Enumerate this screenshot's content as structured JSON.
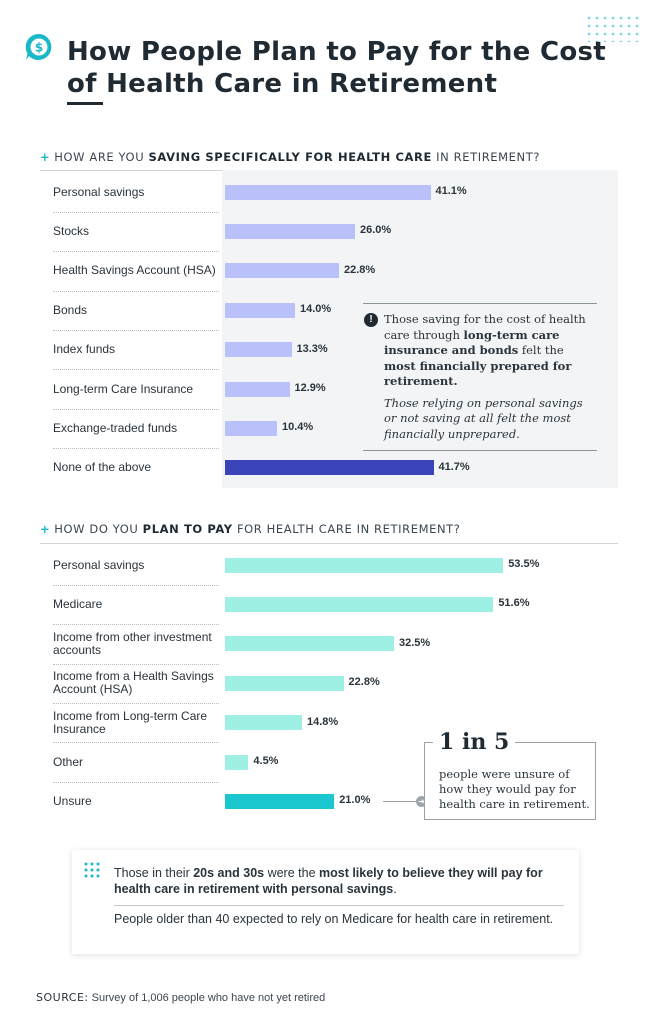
{
  "header": {
    "title": "How People Plan to Pay for the Cost of Health Care in Retirement",
    "icon": "dollar-chat-icon",
    "accent": "#19b8c9"
  },
  "chart_data": [
    {
      "type": "bar",
      "orientation": "horizontal",
      "title_parts": {
        "pre": "HOW ARE YOU ",
        "bold": "SAVING SPECIFICALLY FOR HEALTH CARE",
        "post": " IN RETIREMENT?"
      },
      "categories": [
        "Personal savings",
        "Stocks",
        "Health Savings Account (HSA)",
        "Bonds",
        "Index funds",
        "Long-term Care Insurance",
        "Exchange-traded funds",
        "None of the above"
      ],
      "values": [
        41.1,
        26.0,
        22.8,
        14.0,
        13.3,
        12.9,
        10.4,
        41.7
      ],
      "value_labels": [
        "41.1%",
        "26.0%",
        "22.8%",
        "14.0%",
        "13.3%",
        "12.9%",
        "10.4%",
        "41.7%"
      ],
      "bar_color": "#b9c0fa",
      "highlight_color": "#3a44b8",
      "highlight_index": 7
    },
    {
      "type": "bar",
      "orientation": "horizontal",
      "title_parts": {
        "pre": "HOW DO YOU ",
        "bold": "PLAN TO PAY",
        "post": " FOR HEALTH CARE IN RETIREMENT?"
      },
      "categories": [
        "Personal savings",
        "Medicare",
        "Income from other investment accounts",
        "Income from a Health Savings Account (HSA)",
        "Income from Long-term Care Insurance",
        "Other",
        "Unsure"
      ],
      "values": [
        53.5,
        51.6,
        32.5,
        22.8,
        14.8,
        4.5,
        21.0
      ],
      "value_labels": [
        "53.5%",
        "51.6%",
        "32.5%",
        "22.8%",
        "14.8%",
        "4.5%",
        "21.0%"
      ],
      "bar_color": "#9ff0e4",
      "highlight_color": "#1ac7cf",
      "highlight_index": 6
    }
  ],
  "note1": {
    "icon": "exclamation-icon",
    "pre": "Those saving for the cost of health care through ",
    "bold1": "long-term care insurance and bonds",
    "mid": " felt the ",
    "bold2": "most financially prepared for retirement.",
    "italic": "Those relying on personal savings or not saving at all felt the most financially unprepared."
  },
  "callout": {
    "big": "1 in 5",
    "text": "people were unsure of how they would pay for health care in retirement."
  },
  "insight": {
    "p1_pre": "Those in their ",
    "p1_bold1": "20s and 30s",
    "p1_mid": " were the ",
    "p1_bold2": "most likely to believe they will pay for health care in retirement with personal savings",
    "p1_post": ".",
    "p2": "People older than 40 expected to rely on Medicare for health care in retirement."
  },
  "source": {
    "label": "SOURCE:",
    "text": " Survey of 1,006 people who have not yet retired"
  }
}
